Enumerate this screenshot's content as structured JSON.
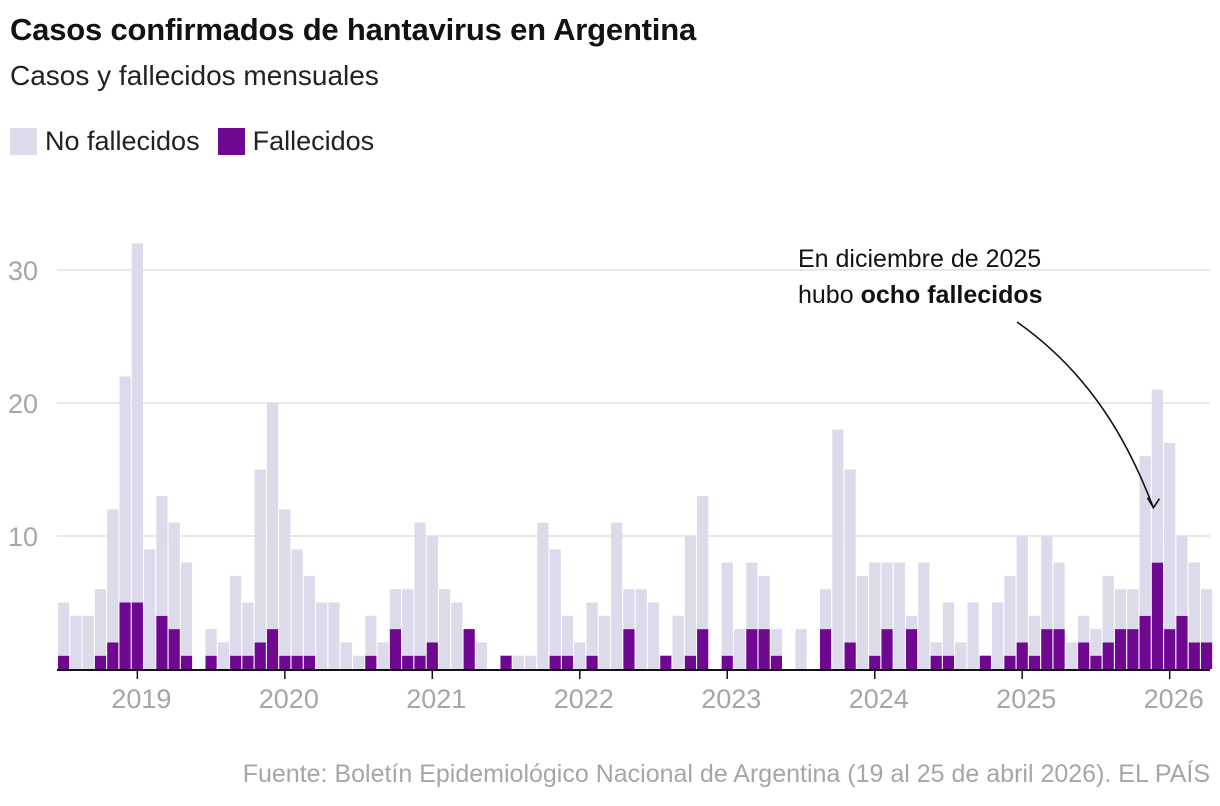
{
  "header": {
    "title": "Casos confirmados de hantavirus en Argentina",
    "subtitle": "Casos y fallecidos mensuales"
  },
  "legend": {
    "items": [
      {
        "label": "No fallecidos",
        "color": "#dcdaeb"
      },
      {
        "label": "Fallecidos",
        "color": "#6f0891"
      }
    ]
  },
  "source": "Fuente: Boletín Epidemiológico Nacional de Argentina (19 al 25 de abril 2026). EL PAÍS",
  "annotation": {
    "line1": "En diciembre de 2025",
    "line2_prefix": "hubo ",
    "line2_bold": "ocho fallecidos"
  },
  "chart_data": {
    "type": "bar",
    "stacked": true,
    "start_month": "2018-07",
    "x": [
      "2018-07",
      "2018-08",
      "2018-09",
      "2018-10",
      "2018-11",
      "2018-12",
      "2019-01",
      "2019-02",
      "2019-03",
      "2019-04",
      "2019-05",
      "2019-06",
      "2019-07",
      "2019-08",
      "2019-09",
      "2019-10",
      "2019-11",
      "2019-12",
      "2020-01",
      "2020-02",
      "2020-03",
      "2020-04",
      "2020-05",
      "2020-06",
      "2020-07",
      "2020-08",
      "2020-09",
      "2020-10",
      "2020-11",
      "2020-12",
      "2021-01",
      "2021-02",
      "2021-03",
      "2021-04",
      "2021-05",
      "2021-06",
      "2021-07",
      "2021-08",
      "2021-09",
      "2021-10",
      "2021-11",
      "2021-12",
      "2022-01",
      "2022-02",
      "2022-03",
      "2022-04",
      "2022-05",
      "2022-06",
      "2022-07",
      "2022-08",
      "2022-09",
      "2022-10",
      "2022-11",
      "2022-12",
      "2023-01",
      "2023-02",
      "2023-03",
      "2023-04",
      "2023-05",
      "2023-06",
      "2023-07",
      "2023-08",
      "2023-09",
      "2023-10",
      "2023-11",
      "2023-12",
      "2024-01",
      "2024-02",
      "2024-03",
      "2024-04",
      "2024-05",
      "2024-06",
      "2024-07",
      "2024-08",
      "2024-09",
      "2024-10",
      "2024-11",
      "2024-12",
      "2025-01",
      "2025-02",
      "2025-03",
      "2025-04",
      "2025-05",
      "2025-06",
      "2025-07",
      "2025-08",
      "2025-09",
      "2025-10",
      "2025-11",
      "2025-12",
      "2026-01",
      "2026-02",
      "2026-03",
      "2026-04"
    ],
    "series": [
      {
        "name": "Fallecidos",
        "values": [
          1,
          0,
          0,
          1,
          2,
          5,
          5,
          0,
          4,
          3,
          1,
          0,
          1,
          0,
          1,
          1,
          2,
          3,
          1,
          1,
          1,
          0,
          0,
          0,
          0,
          1,
          0,
          3,
          1,
          1,
          2,
          0,
          0,
          3,
          0,
          0,
          1,
          0,
          0,
          0,
          1,
          1,
          0,
          1,
          0,
          0,
          3,
          0,
          0,
          1,
          0,
          1,
          3,
          0,
          1,
          0,
          3,
          3,
          1,
          0,
          0,
          0,
          3,
          0,
          2,
          0,
          1,
          3,
          0,
          3,
          0,
          1,
          1,
          0,
          0,
          1,
          0,
          1,
          2,
          1,
          3,
          3,
          0,
          2,
          1,
          2,
          3,
          3,
          4,
          8,
          3,
          4,
          2,
          2
        ]
      },
      {
        "name": "No fallecidos",
        "values": [
          4,
          4,
          4,
          5,
          10,
          17,
          27,
          9,
          9,
          8,
          7,
          0,
          2,
          2,
          6,
          4,
          13,
          17,
          11,
          8,
          6,
          5,
          5,
          2,
          1,
          3,
          2,
          3,
          5,
          10,
          8,
          6,
          5,
          0,
          2,
          0,
          0,
          1,
          1,
          11,
          8,
          3,
          2,
          4,
          4,
          11,
          3,
          6,
          5,
          0,
          4,
          9,
          10,
          0,
          7,
          3,
          5,
          4,
          2,
          0,
          3,
          0,
          3,
          18,
          13,
          7,
          7,
          5,
          8,
          1,
          8,
          1,
          4,
          2,
          5,
          0,
          5,
          6,
          8,
          3,
          7,
          5,
          2,
          2,
          2,
          5,
          3,
          3,
          12,
          13,
          14,
          6,
          6,
          4
        ]
      }
    ],
    "xticks": [
      {
        "label": "2019",
        "month": "2019-01"
      },
      {
        "label": "2020",
        "month": "2020-01"
      },
      {
        "label": "2021",
        "month": "2021-01"
      },
      {
        "label": "2022",
        "month": "2022-01"
      },
      {
        "label": "2023",
        "month": "2023-01"
      },
      {
        "label": "2024",
        "month": "2024-01"
      },
      {
        "label": "2025",
        "month": "2025-01"
      },
      {
        "label": "2026",
        "month": "2026-01"
      }
    ],
    "yticks": [
      10,
      20,
      30
    ],
    "ylim": [
      0,
      32
    ],
    "grid": true,
    "legend_position": "top-left",
    "highlight_month": "2025-12"
  }
}
